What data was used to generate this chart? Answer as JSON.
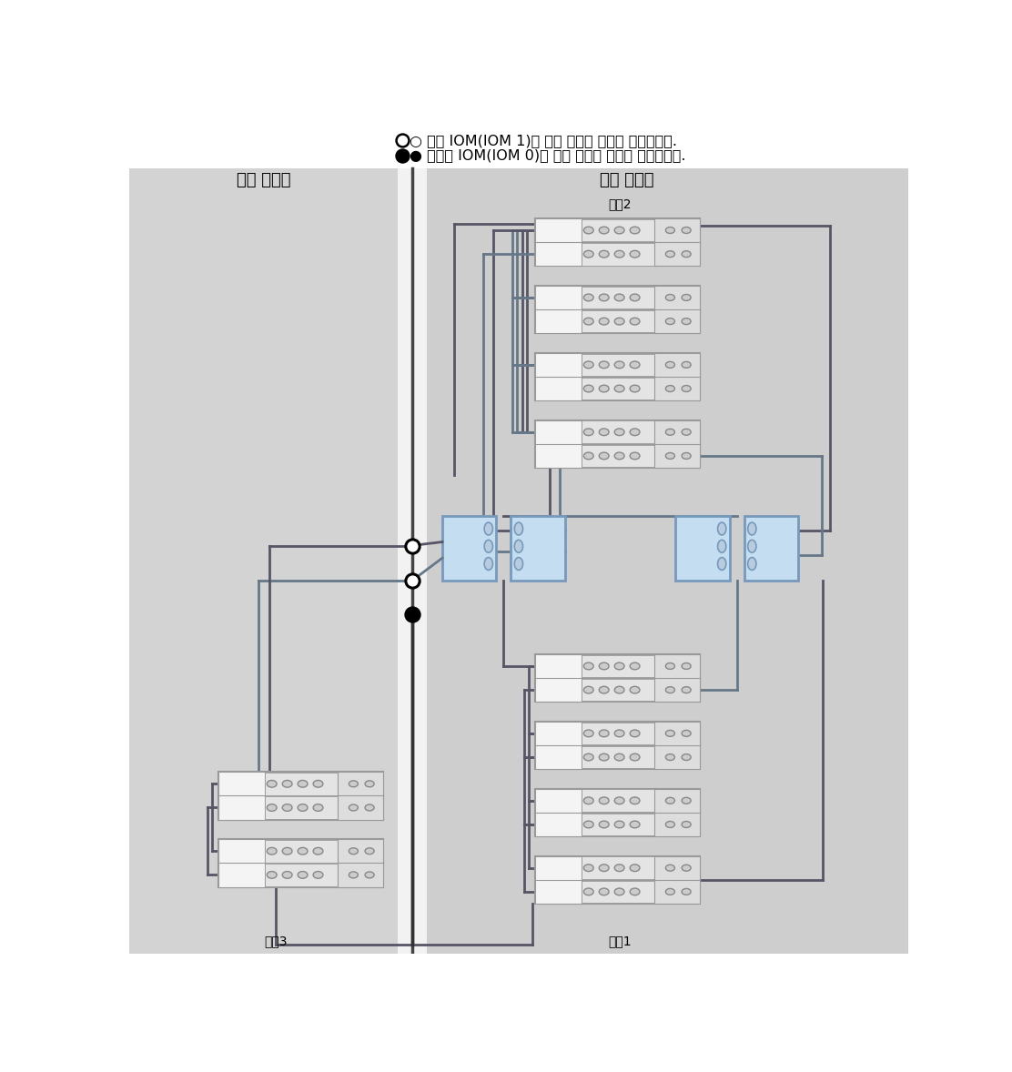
{
  "legend1": "○ 위쪽 IOM(IOM 1)에 대한 케이블 연결을 나타냅니다.",
  "legend2": "● 아래쪽 IOM(IOM 0)에 대한 케이블 연결을 나타냅니다.",
  "label_expansion": "확장 캐비닛",
  "label_base": "기본 캐비닛",
  "label_chain2": "체인2",
  "label_chain1": "체인1",
  "label_chain3": "체인3",
  "bg_left_color": "#d3d3d3",
  "bg_right_color": "#cecece",
  "bg_divider_color": "#f2f2f2",
  "ctrl_fill": "#c5ddf0",
  "ctrl_edge": "#7799bb",
  "shelf_fill": "#e8e8e8",
  "shelf_fill2": "#f4f4f4",
  "shelf_edge": "#999999",
  "port_fill": "#cccccc",
  "port_edge": "#888888",
  "cable_dark": "#555566",
  "cable_mid": "#667788",
  "line_bg": "#888888"
}
